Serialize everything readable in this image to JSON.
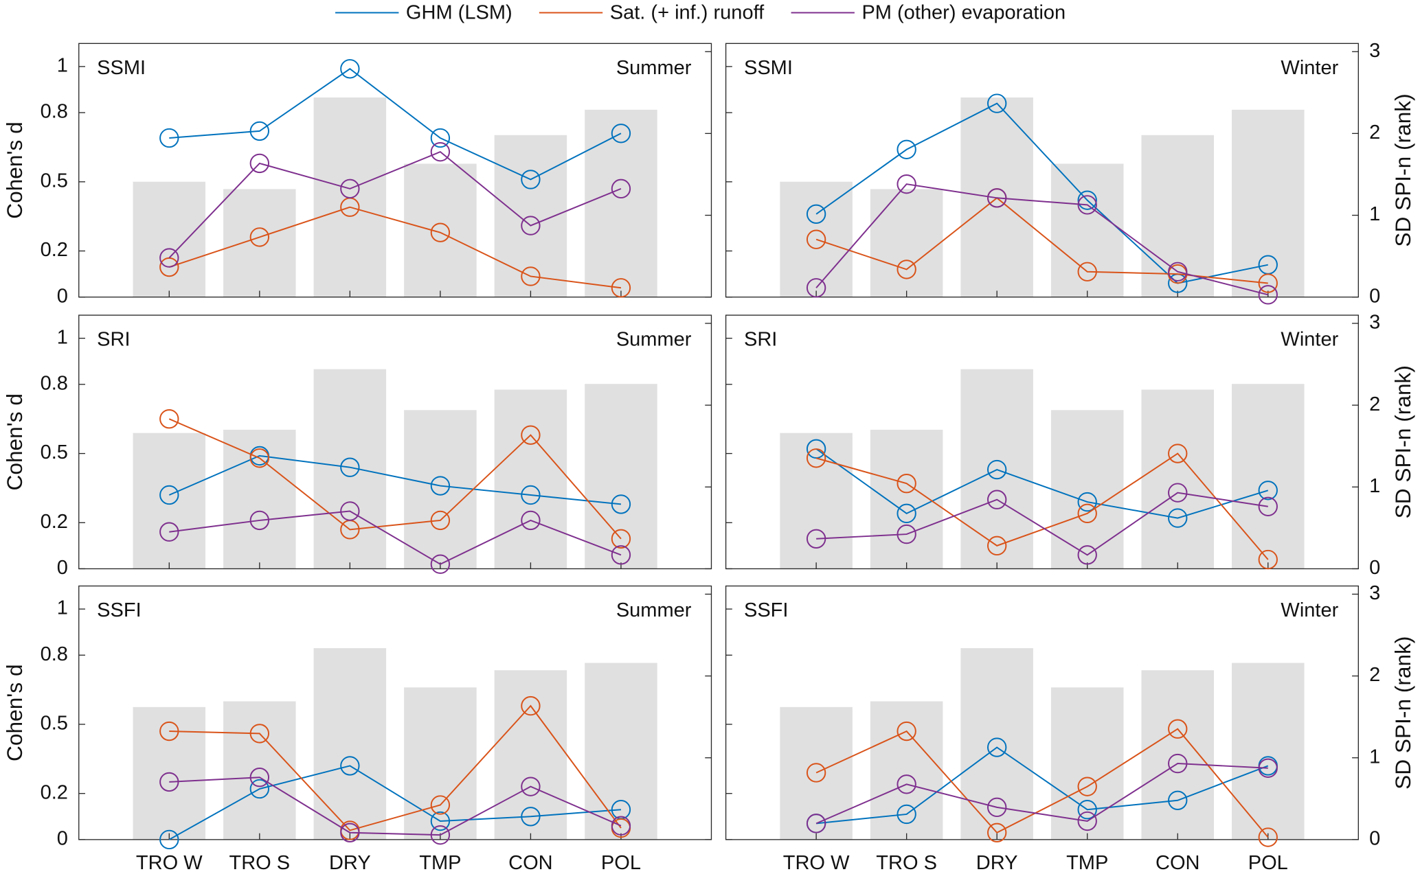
{
  "chart_data": [
    {
      "type": "combo",
      "label": "SSMI",
      "season": "Summer",
      "ylabel": "Cohen's d",
      "ylim": [
        0,
        1.1
      ],
      "yticks": [
        0,
        0.2,
        0.5,
        0.8,
        1
      ],
      "y2lim": [
        0,
        3.1
      ],
      "y2ticks": [
        0,
        1,
        2,
        3
      ],
      "series": [
        {
          "color": "#e0e0e0",
          "axis": "y2",
          "values": [
            1.41,
            1.32,
            2.44,
            1.63,
            1.98,
            2.29
          ]
        },
        {
          "name": "GHM (LSM)",
          "color": "#0072bd",
          "values": [
            0.69,
            0.72,
            0.99,
            0.69,
            0.51,
            0.71
          ]
        },
        {
          "name": "Sat. (+ inf.) runoff",
          "color": "#d95319",
          "values": [
            0.13,
            0.26,
            0.39,
            0.28,
            0.09,
            0.04
          ]
        },
        {
          "name": "PM (other) evaporation",
          "color": "#7e2f8e",
          "values": [
            0.17,
            0.58,
            0.47,
            0.63,
            0.31,
            0.47
          ]
        }
      ]
    },
    {
      "type": "combo",
      "label": "SSMI",
      "season": "Winter",
      "y2label": "SD SPI-n (rank)",
      "ylim": [
        0,
        1.1
      ],
      "yticks": [
        0,
        0.2,
        0.5,
        0.8,
        1
      ],
      "y2lim": [
        0,
        3.1
      ],
      "y2ticks": [
        0,
        1,
        2,
        3
      ],
      "series": [
        {
          "color": "#e0e0e0",
          "axis": "y2",
          "values": [
            1.41,
            1.32,
            2.44,
            1.63,
            1.98,
            2.29
          ]
        },
        {
          "name": "GHM (LSM)",
          "color": "#0072bd",
          "values": [
            0.36,
            0.64,
            0.84,
            0.42,
            0.06,
            0.14
          ]
        },
        {
          "name": "Sat. (+ inf.) runoff",
          "color": "#d95319",
          "values": [
            0.25,
            0.12,
            0.43,
            0.11,
            0.1,
            0.06
          ]
        },
        {
          "name": "PM (other) evaporation",
          "color": "#7e2f8e",
          "values": [
            0.04,
            0.49,
            0.43,
            0.4,
            0.11,
            0.01
          ]
        }
      ]
    },
    {
      "type": "combo",
      "label": "SRI",
      "season": "Summer",
      "ylabel": "Cohen's d",
      "ylim": [
        0,
        1.1
      ],
      "yticks": [
        0,
        0.2,
        0.5,
        0.8,
        1
      ],
      "y2lim": [
        0,
        3.1
      ],
      "y2ticks": [
        0,
        1,
        2,
        3
      ],
      "series": [
        {
          "color": "#e0e0e0",
          "axis": "y2",
          "values": [
            1.66,
            1.7,
            2.44,
            1.94,
            2.19,
            2.26
          ]
        },
        {
          "name": "GHM (LSM)",
          "color": "#0072bd",
          "values": [
            0.32,
            0.49,
            0.44,
            0.36,
            0.32,
            0.28
          ]
        },
        {
          "name": "Sat. (+ inf.) runoff",
          "color": "#d95319",
          "values": [
            0.65,
            0.48,
            0.17,
            0.21,
            0.58,
            0.13
          ]
        },
        {
          "name": "PM (other) evaporation",
          "color": "#7e2f8e",
          "values": [
            0.16,
            0.21,
            0.25,
            0.02,
            0.21,
            0.06
          ]
        }
      ]
    },
    {
      "type": "combo",
      "label": "SRI",
      "season": "Winter",
      "y2label": "SD SPI-n (rank)",
      "ylim": [
        0,
        1.1
      ],
      "yticks": [
        0,
        0.2,
        0.5,
        0.8,
        1
      ],
      "y2lim": [
        0,
        3.1
      ],
      "y2ticks": [
        0,
        1,
        2,
        3
      ],
      "series": [
        {
          "color": "#e0e0e0",
          "axis": "y2",
          "values": [
            1.66,
            1.7,
            2.44,
            1.94,
            2.19,
            2.26
          ]
        },
        {
          "name": "GHM (LSM)",
          "color": "#0072bd",
          "values": [
            0.52,
            0.24,
            0.43,
            0.29,
            0.22,
            0.34
          ]
        },
        {
          "name": "Sat. (+ inf.) runoff",
          "color": "#d95319",
          "values": [
            0.48,
            0.37,
            0.1,
            0.24,
            0.5,
            0.04
          ]
        },
        {
          "name": "PM (other) evaporation",
          "color": "#7e2f8e",
          "values": [
            0.13,
            0.15,
            0.3,
            0.06,
            0.33,
            0.27
          ]
        }
      ]
    },
    {
      "type": "combo",
      "label": "SSFI",
      "season": "Summer",
      "ylabel": "Cohen's d",
      "categories": [
        "TRO W",
        "TRO S",
        "DRY",
        "TMP",
        "CON",
        "POL"
      ],
      "ylim": [
        0,
        1.1
      ],
      "yticks": [
        0,
        0.2,
        0.5,
        0.8,
        1
      ],
      "y2lim": [
        0,
        3.1
      ],
      "y2ticks": [
        0,
        1,
        2,
        3
      ],
      "series": [
        {
          "color": "#e0e0e0",
          "axis": "y2",
          "values": [
            1.62,
            1.69,
            2.34,
            1.86,
            2.07,
            2.16
          ]
        },
        {
          "name": "GHM (LSM)",
          "color": "#0072bd",
          "values": [
            0.0,
            0.22,
            0.32,
            0.08,
            0.1,
            0.13
          ]
        },
        {
          "name": "Sat. (+ inf.) runoff",
          "color": "#d95319",
          "values": [
            0.47,
            0.46,
            0.04,
            0.15,
            0.58,
            0.05
          ]
        },
        {
          "name": "PM (other) evaporation",
          "color": "#7e2f8e",
          "values": [
            0.25,
            0.27,
            0.03,
            0.02,
            0.23,
            0.06
          ]
        }
      ]
    },
    {
      "type": "combo",
      "label": "SSFI",
      "season": "Winter",
      "y2label": "SD SPI-n (rank)",
      "categories": [
        "TRO W",
        "TRO S",
        "DRY",
        "TMP",
        "CON",
        "POL"
      ],
      "ylim": [
        0,
        1.1
      ],
      "yticks": [
        0,
        0.2,
        0.5,
        0.8,
        1
      ],
      "y2lim": [
        0,
        3.1
      ],
      "y2ticks": [
        0,
        1,
        2,
        3
      ],
      "series": [
        {
          "color": "#e0e0e0",
          "axis": "y2",
          "values": [
            1.62,
            1.69,
            2.34,
            1.86,
            2.07,
            2.16
          ]
        },
        {
          "name": "GHM (LSM)",
          "color": "#0072bd",
          "values": [
            0.07,
            0.11,
            0.4,
            0.13,
            0.17,
            0.32
          ]
        },
        {
          "name": "Sat. (+ inf.) runoff",
          "color": "#d95319",
          "values": [
            0.29,
            0.47,
            0.03,
            0.23,
            0.48,
            0.01
          ]
        },
        {
          "name": "PM (other) evaporation",
          "color": "#7e2f8e",
          "values": [
            0.07,
            0.24,
            0.14,
            0.08,
            0.33,
            0.31
          ]
        }
      ]
    }
  ]
}
